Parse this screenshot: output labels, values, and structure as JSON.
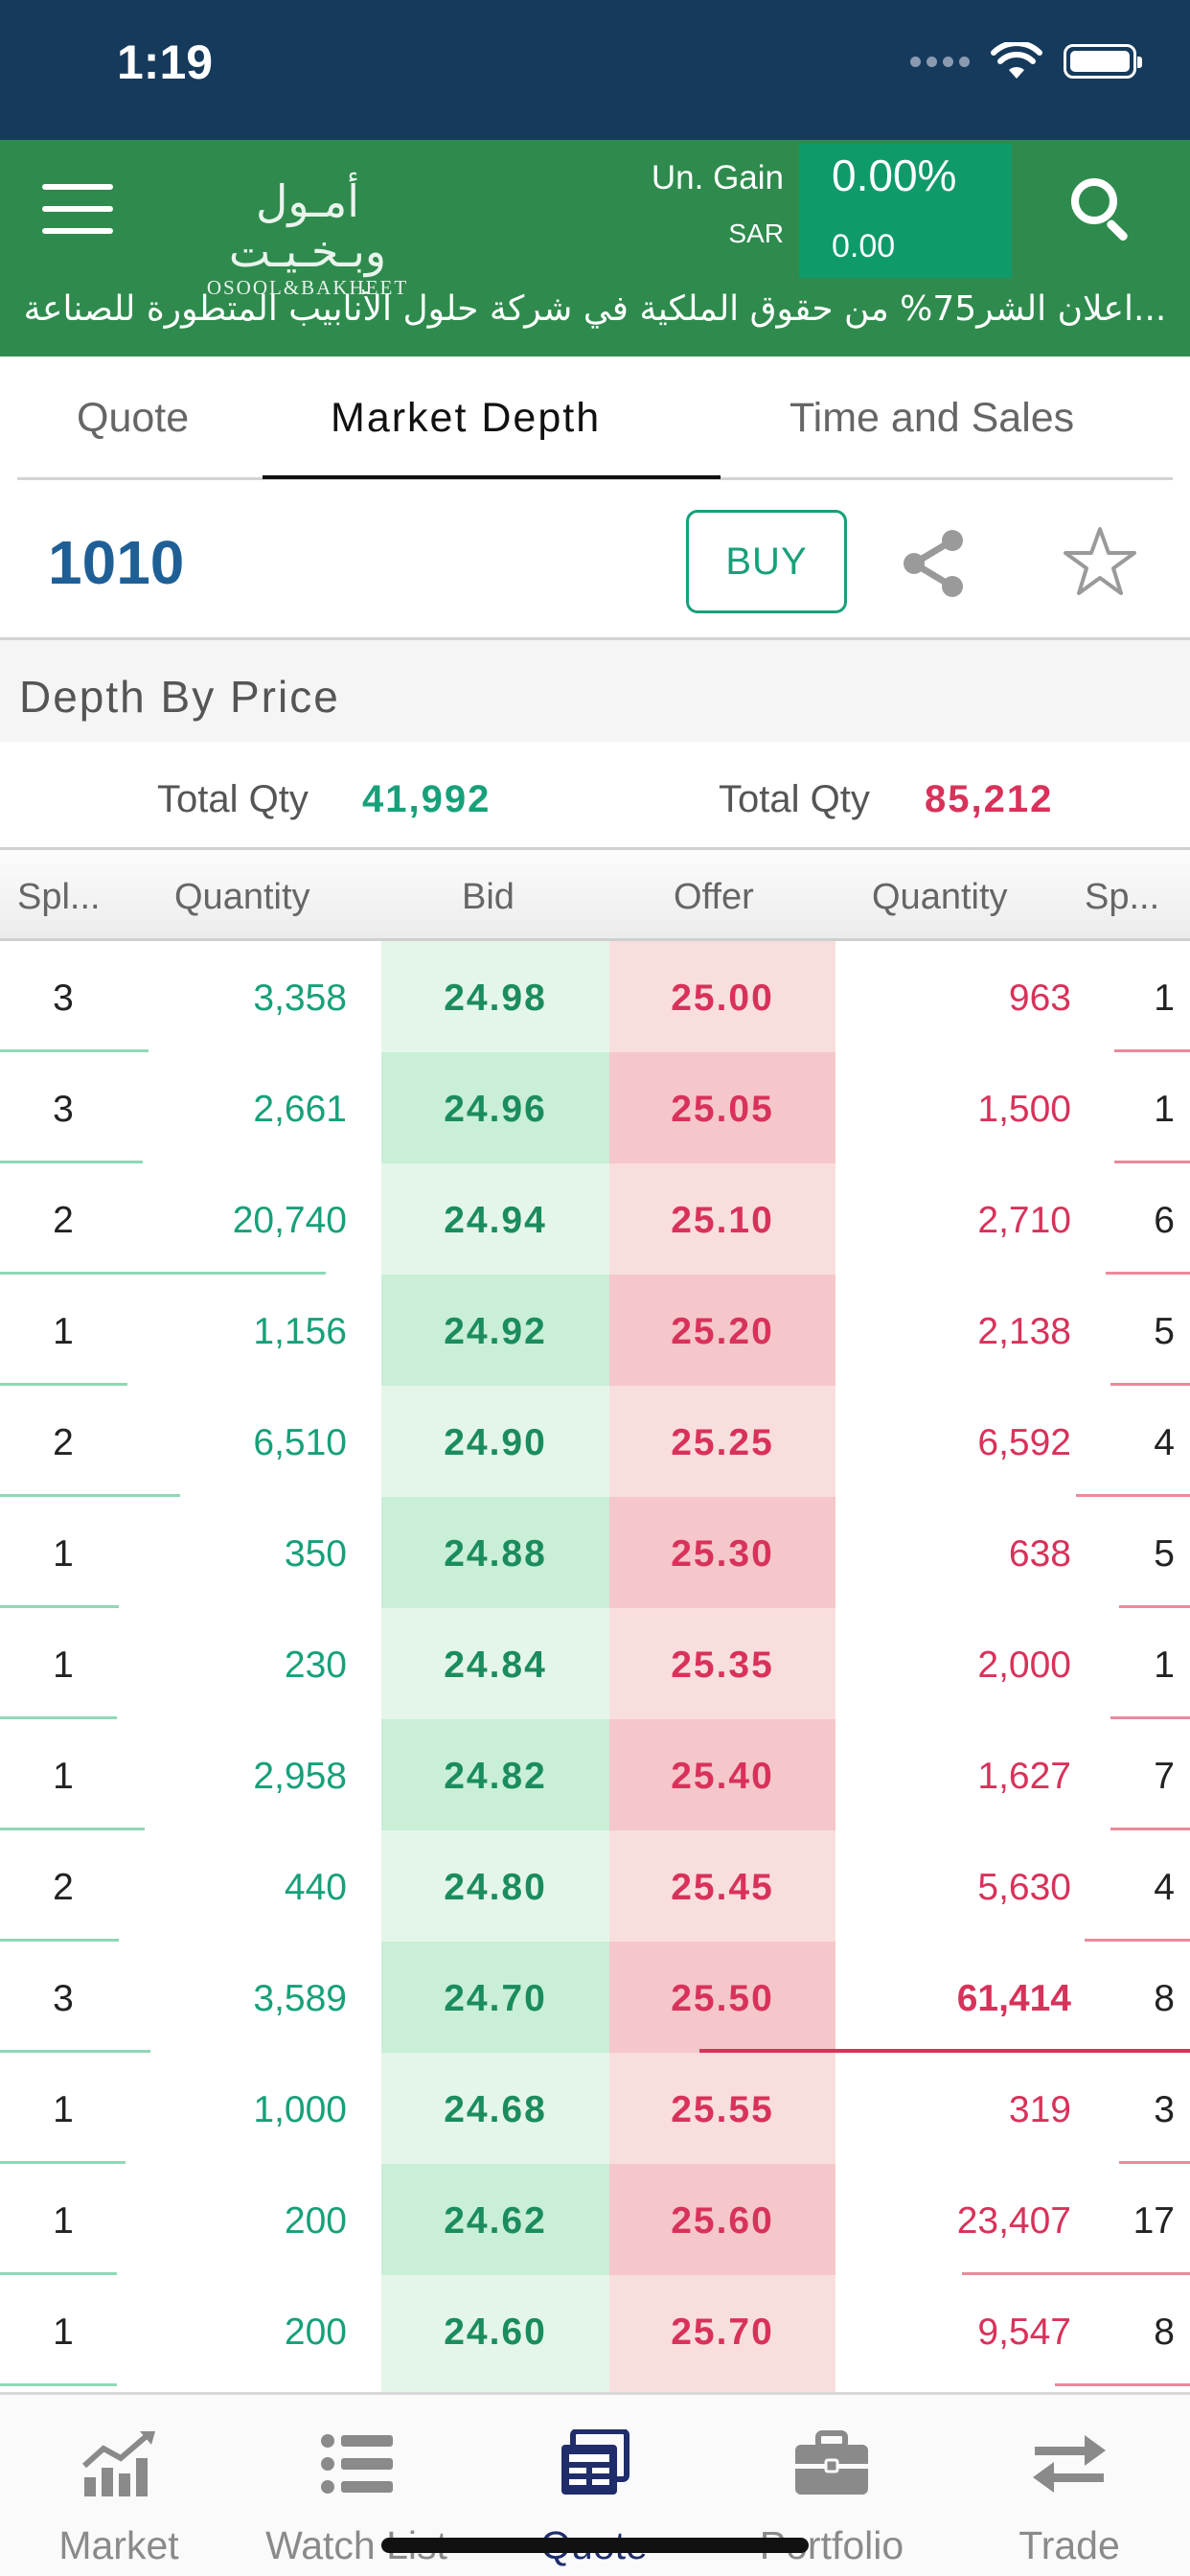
{
  "status_bar": {
    "time": "1:19"
  },
  "header": {
    "logo_ar": "أمـول وبـخـيـت",
    "logo_en": "OSOOL&BAKHEET",
    "gain_label": "Un. Gain",
    "gain_currency": "SAR",
    "gain_percent": "0.00%",
    "gain_value": "0.00",
    "ticker": "...اعلان الشر75% من حقوق الملكية في شركة حلول الأنابيب المتطورة للصناعة"
  },
  "tabs": [
    {
      "label": "Quote"
    },
    {
      "label": "Market Depth"
    },
    {
      "label": "Time and Sales"
    }
  ],
  "symbol": {
    "code": "1010",
    "buy_label": "BUY"
  },
  "depth": {
    "title": "Depth By Price",
    "total_label": "Total Qty",
    "total_bid": "41,992",
    "total_offer": "85,212",
    "columns": [
      "Spl...",
      "Quantity",
      "Bid",
      "Offer",
      "Quantity",
      "Sp..."
    ],
    "rows": [
      {
        "bid_splits": "3",
        "bid_qty": "3,358",
        "bid": "24.98",
        "offer": "25.00",
        "offer_qty": "963",
        "offer_splits": "1",
        "bid_level": 0.16,
        "offer_level": 0.02
      },
      {
        "bid_splits": "3",
        "bid_qty": "2,661",
        "bid": "24.96",
        "offer": "25.05",
        "offer_qty": "1,500",
        "offer_splits": "1",
        "bid_level": 0.13,
        "offer_level": 0.02
      },
      {
        "bid_splits": "2",
        "bid_qty": "20,740",
        "bid": "24.94",
        "offer": "25.10",
        "offer_qty": "2,710",
        "offer_splits": "6",
        "bid_level": 1.0,
        "offer_level": 0.04
      },
      {
        "bid_splits": "1",
        "bid_qty": "1,156",
        "bid": "24.92",
        "offer": "25.20",
        "offer_qty": "2,138",
        "offer_splits": "5",
        "bid_level": 0.06,
        "offer_level": 0.03
      },
      {
        "bid_splits": "2",
        "bid_qty": "6,510",
        "bid": "24.90",
        "offer": "25.25",
        "offer_qty": "6,592",
        "offer_splits": "4",
        "bid_level": 0.31,
        "offer_level": 0.11
      },
      {
        "bid_splits": "1",
        "bid_qty": "350",
        "bid": "24.88",
        "offer": "25.30",
        "offer_qty": "638",
        "offer_splits": "5",
        "bid_level": 0.02,
        "offer_level": 0.01
      },
      {
        "bid_splits": "1",
        "bid_qty": "230",
        "bid": "24.84",
        "offer": "25.35",
        "offer_qty": "2,000",
        "offer_splits": "1",
        "bid_level": 0.01,
        "offer_level": 0.03
      },
      {
        "bid_splits": "1",
        "bid_qty": "2,958",
        "bid": "24.82",
        "offer": "25.40",
        "offer_qty": "1,627",
        "offer_splits": "7",
        "bid_level": 0.14,
        "offer_level": 0.03
      },
      {
        "bid_splits": "2",
        "bid_qty": "440",
        "bid": "24.80",
        "offer": "25.45",
        "offer_qty": "5,630",
        "offer_splits": "4",
        "bid_level": 0.02,
        "offer_level": 0.09
      },
      {
        "bid_splits": "3",
        "bid_qty": "3,589",
        "bid": "24.70",
        "offer": "25.50",
        "offer_qty": "61,414",
        "offer_splits": "8",
        "bid_level": 0.17,
        "offer_level": 1.0
      },
      {
        "bid_splits": "1",
        "bid_qty": "1,000",
        "bid": "24.68",
        "offer": "25.55",
        "offer_qty": "319",
        "offer_splits": "3",
        "bid_level": 0.05,
        "offer_level": 0.01
      },
      {
        "bid_splits": "1",
        "bid_qty": "200",
        "bid": "24.62",
        "offer": "25.60",
        "offer_qty": "23,407",
        "offer_splits": "17",
        "bid_level": 0.01,
        "offer_level": 0.38
      },
      {
        "bid_splits": "1",
        "bid_qty": "200",
        "bid": "24.60",
        "offer": "25.70",
        "offer_qty": "9,547",
        "offer_splits": "8",
        "bid_level": 0.01,
        "offer_level": 0.16
      }
    ]
  },
  "bottom_nav": [
    {
      "label": "Market",
      "icon": "market-chart-icon"
    },
    {
      "label": "Watch List",
      "icon": "watch-list-icon"
    },
    {
      "label": "Quote",
      "icon": "quote-icon"
    },
    {
      "label": "Portfolio",
      "icon": "portfolio-briefcase-icon"
    },
    {
      "label": "Trade",
      "icon": "trade-arrows-icon"
    }
  ],
  "colors": {
    "header_green": "#2e8b4d",
    "status_navy": "#163a5c",
    "bid_green": "#17a07a",
    "offer_red": "#d8325a",
    "nav_active": "#1f2d6b"
  }
}
